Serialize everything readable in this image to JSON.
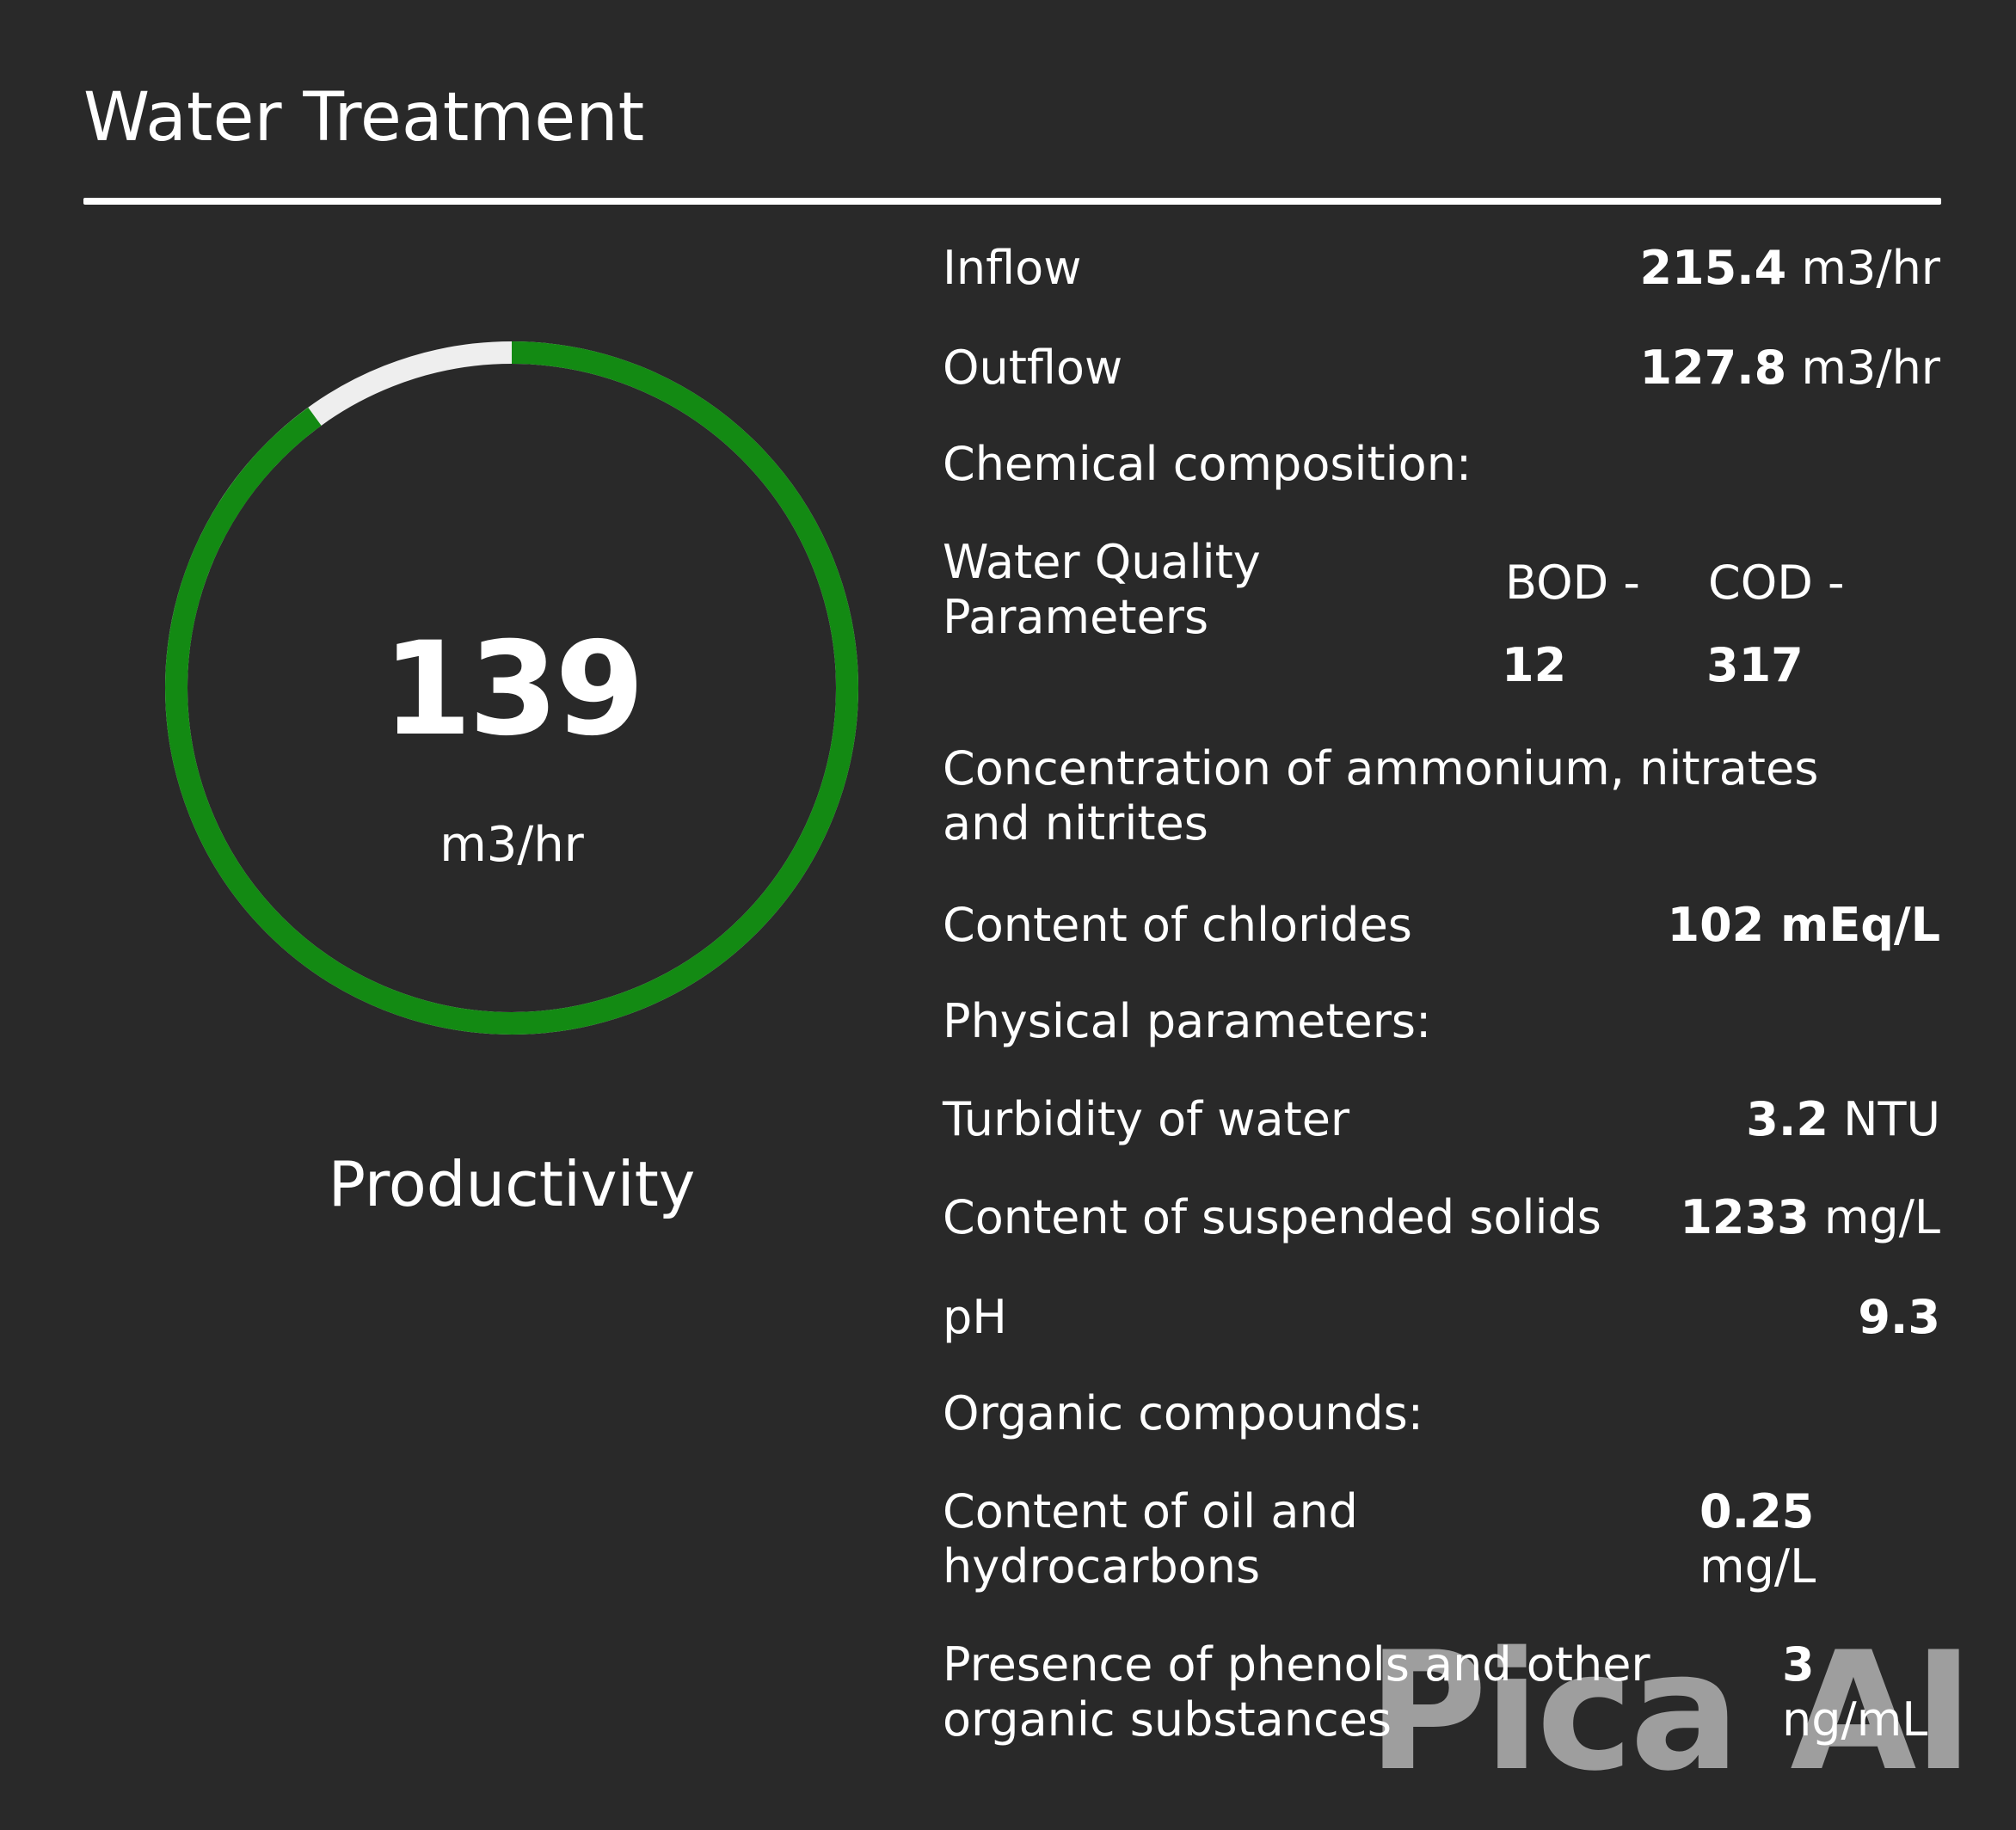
{
  "header": {
    "title": "Water Treatment"
  },
  "gauge": {
    "value": "139",
    "unit": "m3/hr",
    "label": "Productivity",
    "fill_fraction": 0.9,
    "fill_color": "#138a13",
    "track_color": "#eeeeee"
  },
  "metrics": {
    "inflow": {
      "label": "Inflow",
      "value": "215.4",
      "unit": "m3/hr"
    },
    "outflow": {
      "label": "Outflow",
      "value": "127.8",
      "unit": "m3/hr"
    },
    "chemical_heading": "Chemical composition:",
    "water_quality": {
      "label_line1": "Water Quality",
      "label_line2": "Parameters",
      "bod_label": "BOD -",
      "bod_value": "12",
      "cod_label": "COD -",
      "cod_value": "317"
    },
    "ammonium": {
      "line1": "Concentration of ammonium, nitrates",
      "line2": "and nitrites"
    },
    "chlorides": {
      "label": "Content of chlorides",
      "value": "102 mEq/L"
    },
    "physical_heading": "Physical parameters:",
    "turbidity": {
      "label": "Turbidity of water",
      "value": "3.2",
      "unit": "NTU"
    },
    "suspended": {
      "label": "Content of suspended solids",
      "value": "1233",
      "unit": "mg/L"
    },
    "ph": {
      "label": "pH",
      "value": "9.3"
    },
    "organic_heading": "Organic compounds:",
    "oil": {
      "line1": "Content of oil and",
      "line2": "hydrocarbons",
      "value": "0.25",
      "unit": "mg/L"
    },
    "phenols": {
      "line1": "Presence of phenols and other",
      "line2": "organic substances",
      "value": "3",
      "unit": "ng/mL"
    }
  },
  "watermark": "Pica AI"
}
